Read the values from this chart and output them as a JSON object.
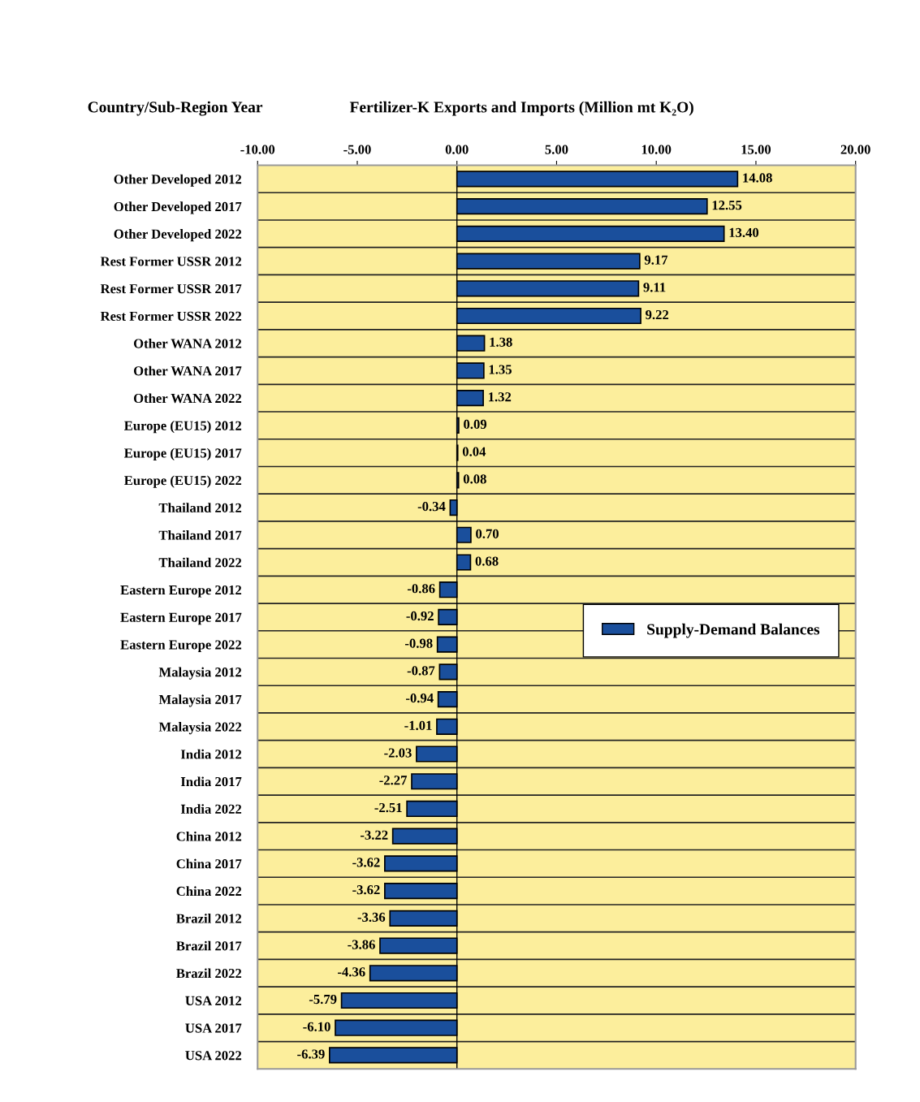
{
  "chart_data": {
    "type": "bar",
    "orientation": "horizontal",
    "title": "Fertilizer-K Exports and Imports (Million mt K₂O)",
    "ylabel": "Country/Sub-Region Year",
    "categories": [
      "Other Developed 2012",
      "Other Developed 2017",
      "Other Developed 2022",
      "Rest Former USSR 2012",
      "Rest Former USSR 2017",
      "Rest Former USSR 2022",
      "Other WANA 2012",
      "Other WANA 2017",
      "Other WANA 2022",
      "Europe (EU15) 2012",
      "Europe (EU15) 2017",
      "Europe (EU15) 2022",
      "Thailand 2012",
      "Thailand 2017",
      "Thailand 2022",
      "Eastern Europe 2012",
      "Eastern Europe 2017",
      "Eastern Europe 2022",
      "Malaysia 2012",
      "Malaysia 2017",
      "Malaysia 2022",
      "India 2012",
      "India 2017",
      "India 2022",
      "China 2012",
      "China 2017",
      "China 2022",
      "Brazil 2012",
      "Brazil 2017",
      "Brazil 2022",
      "USA 2012",
      "USA 2017",
      "USA 2022"
    ],
    "series": [
      {
        "name": "Supply-Demand Balances",
        "color": "#1a4f9c",
        "values": [
          14.08,
          12.55,
          13.4,
          9.17,
          9.11,
          9.22,
          1.38,
          1.35,
          1.32,
          0.09,
          0.04,
          0.08,
          -0.34,
          0.7,
          0.68,
          -0.86,
          -0.92,
          -0.98,
          -0.87,
          -0.94,
          -1.01,
          -2.03,
          -2.27,
          -2.51,
          -3.22,
          -3.62,
          -3.62,
          -3.36,
          -3.86,
          -4.36,
          -5.79,
          -6.1,
          -6.39
        ]
      }
    ],
    "xlim": [
      -10,
      20
    ],
    "xticks": [
      {
        "value": -10,
        "label": "-10.00"
      },
      {
        "value": -5,
        "label": "-5.00"
      },
      {
        "value": 0,
        "label": "0.00"
      },
      {
        "value": 5,
        "label": "5.00"
      },
      {
        "value": 10,
        "label": "10.00"
      },
      {
        "value": 15,
        "label": "15.00"
      },
      {
        "value": 20,
        "label": "20.00"
      }
    ],
    "value_labels": [
      "14.08",
      "12.55",
      "13.40",
      "9.17",
      "9.11",
      "9.22",
      "1.38",
      "1.35",
      "1.32",
      "0.09",
      "0.04",
      "0.08",
      "-0.34",
      "0.70",
      "0.68",
      "-0.86",
      "-0.92",
      "-0.98",
      "-0.87",
      "-0.94",
      "-1.01",
      "-2.03",
      "-2.27",
      "-2.51",
      "-3.22",
      "-3.62",
      "-3.62",
      "-3.36",
      "-3.86",
      "-4.36",
      "-5.79",
      "-6.10",
      "-6.39"
    ],
    "grid": "y",
    "legend": "right"
  }
}
